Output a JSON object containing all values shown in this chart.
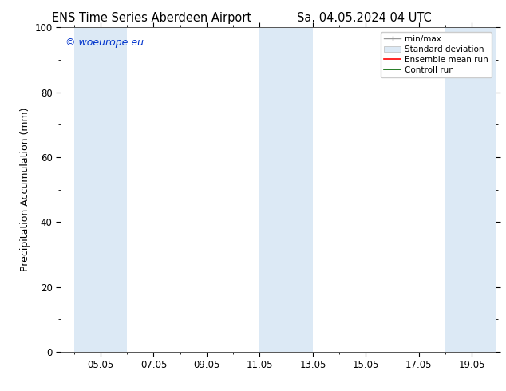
{
  "title_left": "ENS Time Series Aberdeen Airport",
  "title_right": "Sa. 04.05.2024 04 UTC",
  "ylabel": "Precipitation Accumulation (mm)",
  "ylim": [
    0,
    100
  ],
  "yticks": [
    0,
    20,
    40,
    60,
    80,
    100
  ],
  "x_tick_labels": [
    "05.05",
    "07.05",
    "09.05",
    "11.05",
    "13.05",
    "15.05",
    "17.05",
    "19.05"
  ],
  "watermark": "© woeurope.eu",
  "watermark_color": "#0033cc",
  "shaded_bands": [
    {
      "x_start": 4.0,
      "x_end": 6.0
    },
    {
      "x_start": 11.0,
      "x_end": 13.0
    },
    {
      "x_start": 18.0,
      "x_end": 20.0
    }
  ],
  "shaded_color": "#dce9f5",
  "legend_entries": [
    {
      "label": "min/max",
      "style": "errbar"
    },
    {
      "label": "Standard deviation",
      "style": "patch"
    },
    {
      "label": "Ensemble mean run",
      "style": "line",
      "color": "#ff0000"
    },
    {
      "label": "Controll run",
      "style": "line",
      "color": "#006600"
    }
  ],
  "bg_color": "#ffffff",
  "title_fontsize": 10.5,
  "tick_fontsize": 8.5,
  "ylabel_fontsize": 9,
  "legend_fontsize": 7.5,
  "xlim": [
    3.5,
    19.9
  ],
  "x_tick_positions": [
    5,
    7,
    9,
    11,
    13,
    15,
    17,
    19
  ]
}
